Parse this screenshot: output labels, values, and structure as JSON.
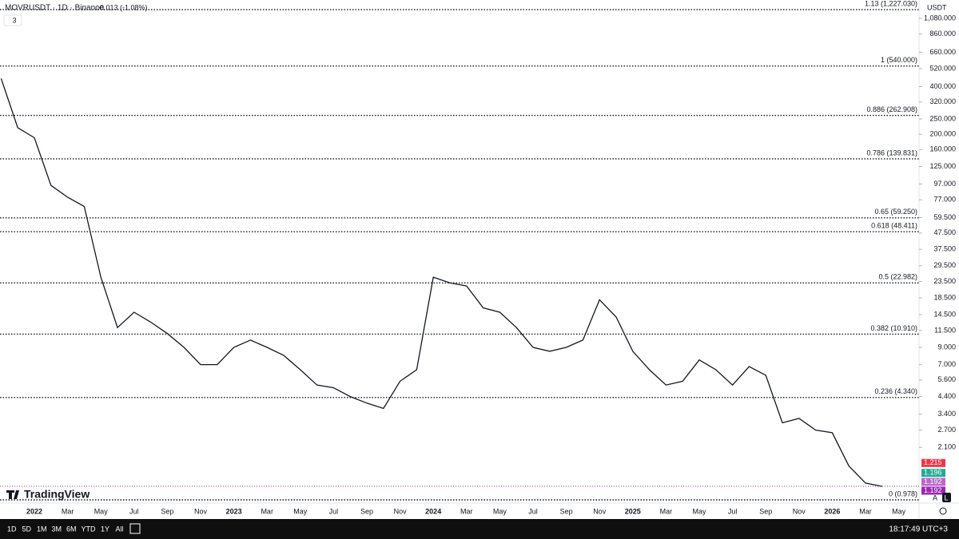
{
  "chart_data": {
    "type": "line",
    "title": "MOVRUSDT · 1D · Binance",
    "change": "-0.013 (-1.08%)",
    "indicators": "3",
    "currency": "USDT",
    "logo": "TradingView",
    "log_scale": true,
    "categories": [
      null,
      null,
      "2022",
      null,
      "Mar",
      null,
      "May",
      null,
      "Jul",
      null,
      "Sep",
      null,
      "Nov",
      null,
      "2023",
      null,
      "Mar",
      null,
      "May",
      null,
      "Jul",
      null,
      "Sep",
      null,
      "Nov",
      null,
      "2024",
      null,
      "Mar",
      null,
      "May",
      null,
      "Jul",
      null,
      "Sep",
      null,
      "Nov",
      null,
      "2025",
      null,
      "Mar",
      null,
      "May",
      null,
      "Jul",
      null,
      "Sep",
      null,
      "Nov",
      null,
      "2026",
      null,
      "Mar",
      null,
      "May"
    ],
    "series": [
      {
        "name": "MOVRUSDT",
        "color": "#131722",
        "values": [
          450,
          220,
          190,
          95,
          80,
          70,
          25,
          12,
          15,
          13,
          11,
          9,
          7,
          7,
          9,
          10,
          9,
          8,
          6.5,
          5.2,
          5,
          4.4,
          4,
          3.7,
          5.5,
          6.5,
          25,
          23,
          22,
          16,
          15,
          12,
          9,
          8.5,
          9,
          10,
          18,
          14,
          8.5,
          6.5,
          5.2,
          5.5,
          7.5,
          6.5,
          5.2,
          6.8,
          6,
          3,
          3.2,
          2.7,
          2.6,
          1.6,
          1.25,
          1.19,
          null
        ]
      }
    ],
    "ylim": [
      0.74,
      1411
    ],
    "yticks": [
      {
        "value": 1080,
        "label": "1,080.000"
      },
      {
        "value": 860,
        "label": "860.000"
      },
      {
        "value": 660,
        "label": "660.000"
      },
      {
        "value": 520,
        "label": "520.000"
      },
      {
        "value": 400,
        "label": "400.000"
      },
      {
        "value": 320,
        "label": "320.000"
      },
      {
        "value": 250,
        "label": "250.000"
      },
      {
        "value": 200,
        "label": "200.000"
      },
      {
        "value": 160,
        "label": "160.000"
      },
      {
        "value": 125,
        "label": "125.000"
      },
      {
        "value": 97,
        "label": "97.000"
      },
      {
        "value": 77,
        "label": "77.000"
      },
      {
        "value": 59.5,
        "label": "59.500"
      },
      {
        "value": 47.5,
        "label": "47.500"
      },
      {
        "value": 37.5,
        "label": "37.500"
      },
      {
        "value": 29.5,
        "label": "29.500"
      },
      {
        "value": 23.5,
        "label": "23.500"
      },
      {
        "value": 18.5,
        "label": "18.500"
      },
      {
        "value": 14.5,
        "label": "14.500"
      },
      {
        "value": 11.5,
        "label": "11.500"
      },
      {
        "value": 9,
        "label": "9.000"
      },
      {
        "value": 7,
        "label": "7.000"
      },
      {
        "value": 5.6,
        "label": "5.600"
      },
      {
        "value": 4.4,
        "label": "4.400"
      },
      {
        "value": 3.4,
        "label": "3.400"
      },
      {
        "value": 2.7,
        "label": "2.700"
      },
      {
        "value": 2.1,
        "label": "2.100"
      }
    ],
    "fib_levels": [
      {
        "value": 1227.03,
        "label": "1.13 (1,227.030)"
      },
      {
        "value": 540,
        "label": "1 (540.000)"
      },
      {
        "value": 262.908,
        "label": "0.886 (262.908)"
      },
      {
        "value": 139.831,
        "label": "0.786 (139.831)"
      },
      {
        "value": 59.25,
        "label": "0.65 (59.250)"
      },
      {
        "value": 48.411,
        "label": "0.618 (48.411)"
      },
      {
        "value": 22.982,
        "label": "0.5 (22.982)"
      },
      {
        "value": 10.91,
        "label": "0.382 (10.910)"
      },
      {
        "value": 4.34,
        "label": "0.236 (4.340)"
      },
      {
        "value": 0.978,
        "label": "0 (0.978)"
      }
    ],
    "price_tags": [
      {
        "value": 1.215,
        "label": "1.215",
        "color": "#f23645"
      },
      {
        "value": 1.196,
        "label": "1.196",
        "color": "#22ab94"
      },
      {
        "value": 1.192,
        "label": "1.192",
        "color": "#ba68c8"
      },
      {
        "value": 1.192,
        "label": "1.192",
        "color": "#9c27b0"
      }
    ],
    "timeframes": [
      "1D",
      "5D",
      "1M",
      "3M",
      "6M",
      "YTD",
      "1Y",
      "All"
    ],
    "clock": "18:17:49 UTC+3",
    "scale_buttons": [
      "A",
      "L"
    ]
  }
}
